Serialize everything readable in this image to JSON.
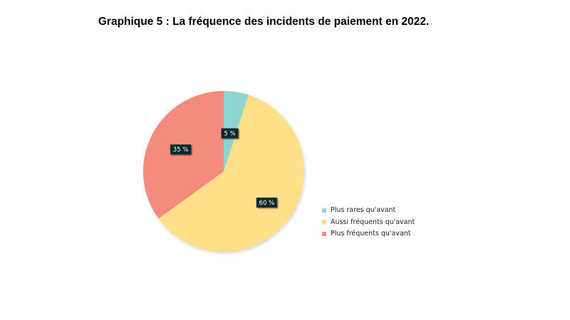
{
  "chart_data": {
    "type": "pie",
    "title": "Graphique 5 : La fréquence des incidents de paiement en 2022.",
    "categories": [
      "Plus rares qu'avant",
      "Aussi fréquents qu'avant",
      "Plus fréquents qu'avant"
    ],
    "values": [
      5,
      60,
      35
    ],
    "data_labels": [
      "5 %",
      "60 %",
      "35 %"
    ],
    "colors": [
      "#8ED4D2",
      "#FFDF88",
      "#F48B7D"
    ],
    "legend": "right",
    "start_angle": "12 o'clock",
    "direction": "clockwise"
  }
}
